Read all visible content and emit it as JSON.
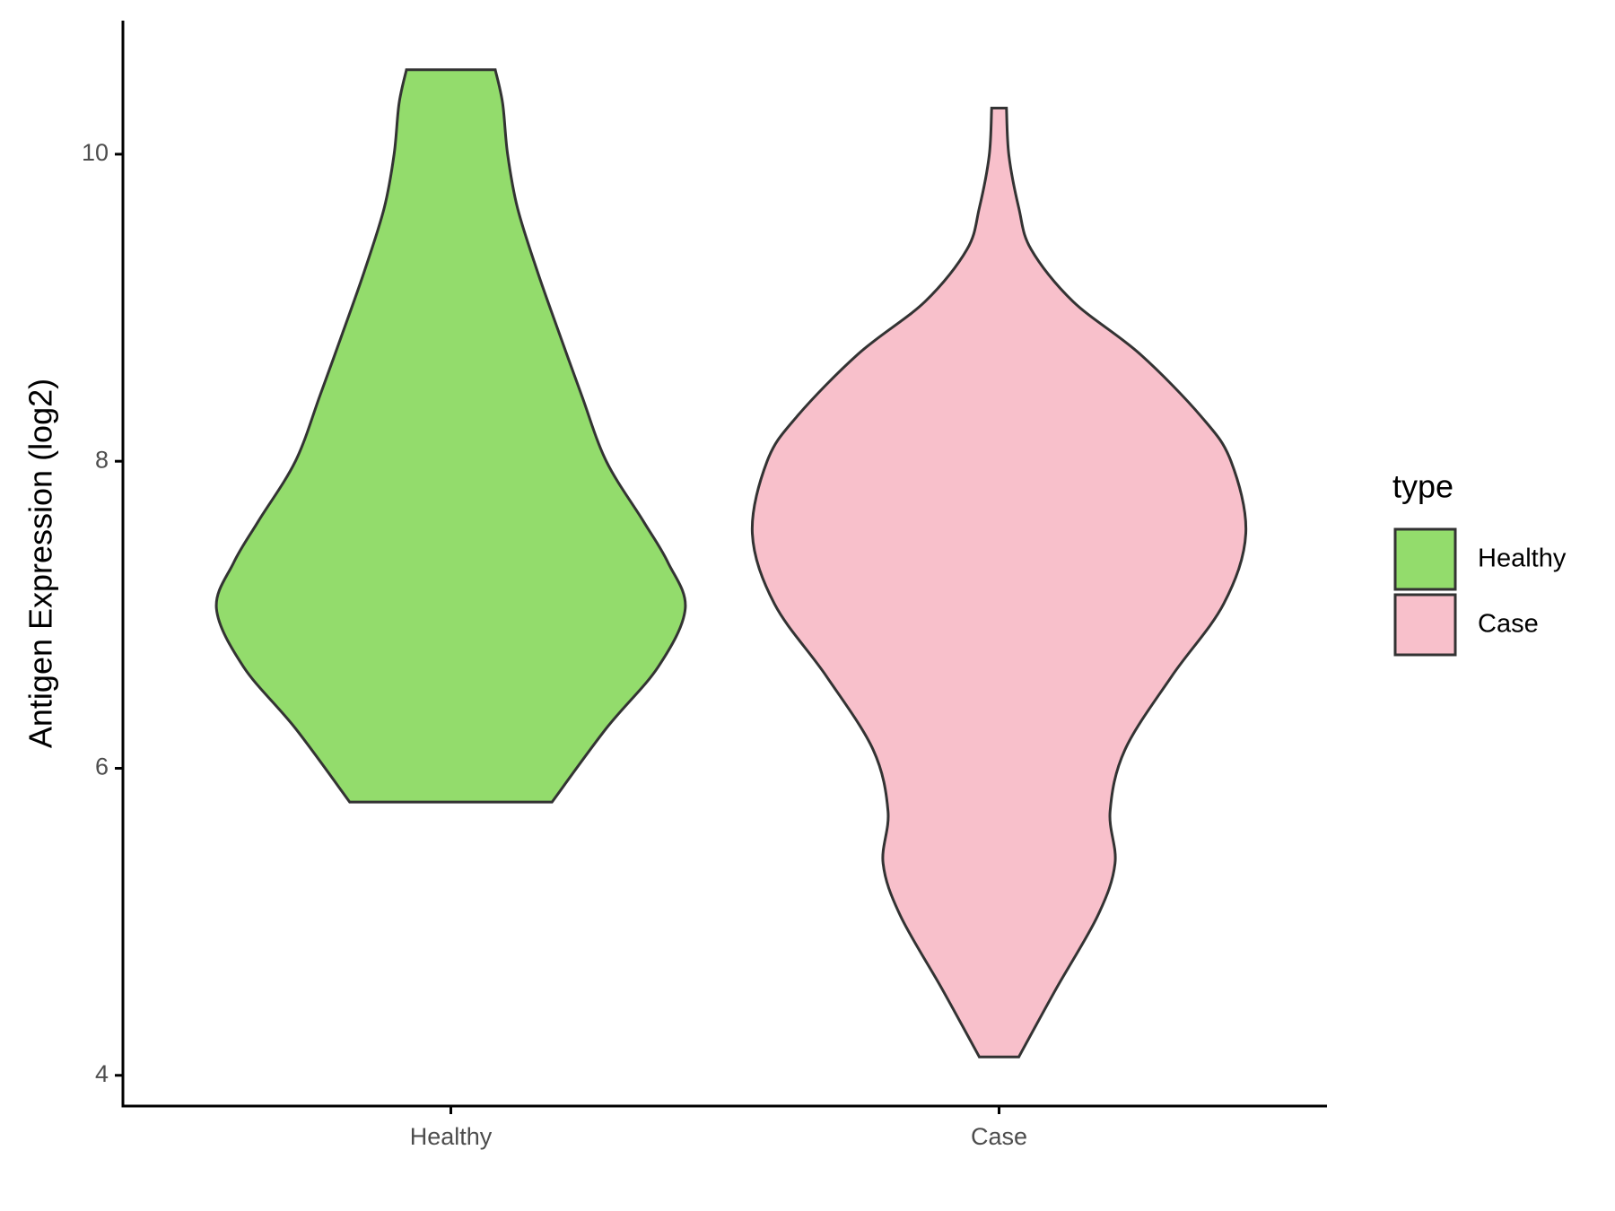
{
  "chart_data": {
    "type": "violin",
    "ylabel": "Antigen Expression (log2)",
    "categories": [
      "Healthy",
      "Case"
    ],
    "legend_title": "type",
    "legend": "right",
    "ylim": [
      3.8,
      10.87
    ],
    "yticks": [
      4,
      6,
      8,
      10
    ],
    "series": [
      {
        "name": "Healthy",
        "color": "#93dc6c",
        "y": [
          10.55,
          10.33,
          10.0,
          9.65,
          9.24,
          8.83,
          8.43,
          8.0,
          7.61,
          7.34,
          7.04,
          6.66,
          6.26,
          5.78
        ],
        "width": [
          0.18,
          0.21,
          0.23,
          0.27,
          0.35,
          0.44,
          0.53,
          0.63,
          0.78,
          0.88,
          0.95,
          0.84,
          0.63,
          0.41
        ]
      },
      {
        "name": "Case",
        "color": "#f8c0cb",
        "y": [
          10.3,
          9.99,
          9.65,
          9.38,
          9.04,
          8.7,
          8.29,
          8.0,
          7.53,
          7.07,
          6.6,
          6.12,
          5.72,
          5.38,
          5.04,
          4.56,
          4.12
        ],
        "width": [
          0.03,
          0.04,
          0.08,
          0.13,
          0.3,
          0.57,
          0.82,
          0.94,
          1.0,
          0.91,
          0.7,
          0.51,
          0.45,
          0.47,
          0.4,
          0.23,
          0.08
        ]
      }
    ]
  }
}
